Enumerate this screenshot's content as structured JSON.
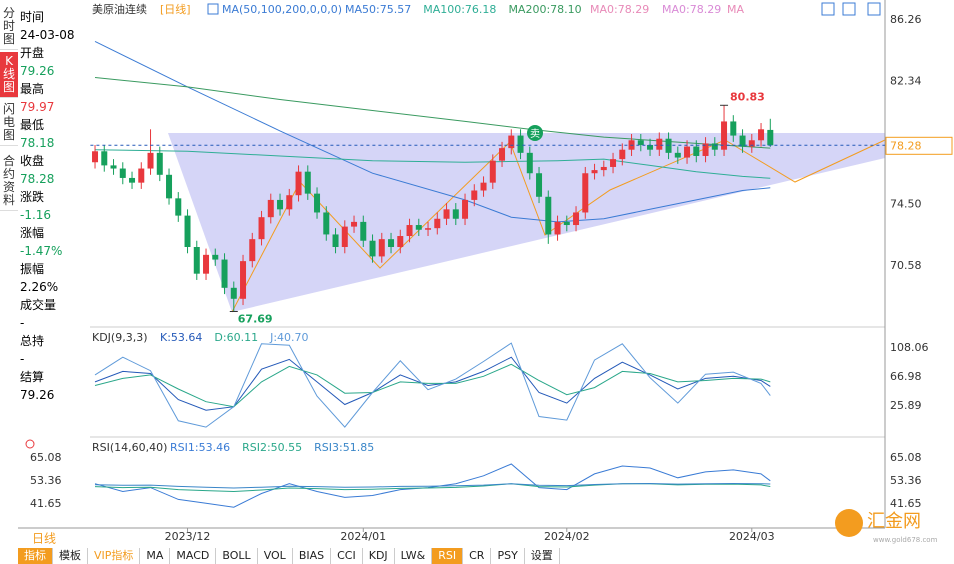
{
  "header": {
    "symbol": "美原油连续",
    "period": "[日线]",
    "ma_params": "MA(50,100,200,0,0,0)",
    "extras": [
      "MA0:78.29",
      "MA0:78.29",
      "MA"
    ]
  },
  "sidebar": {
    "tabs": [
      "分时图",
      "K线图",
      "闪电图",
      "合约资料"
    ],
    "labels": [
      "时间",
      "开盘",
      "最高",
      "最低",
      "收盘",
      "涨跌",
      "涨幅",
      "振幅",
      "成交量",
      "总持",
      "结算"
    ],
    "time": "24-03-08",
    "change": -1.16,
    "change_pct": "-1.47%",
    "amplitude": "2.26%",
    "volume": "-",
    "open_interest": "-",
    "settlement": 79.26
  },
  "period_tab": "日线",
  "tabs": [
    "指标",
    "模板",
    "VIP指标",
    "MA",
    "MACD",
    "BOLL",
    "VOL",
    "BIAS",
    "CCI",
    "KDJ",
    "LW&",
    "RSI",
    "CR",
    "PSY",
    "设置"
  ],
  "watermark": {
    "name": "汇金网",
    "url": "www.gold678.com"
  },
  "chart_data": [
    {
      "type": "candlestick",
      "signal": "卖",
      "up_color": "#e8383d",
      "down_color": "#16a05c",
      "open": [
        77.2,
        77.9,
        77.0,
        76.8,
        76.2,
        75.9,
        76.8,
        77.8,
        76.4,
        74.9,
        73.8,
        71.8,
        70.1,
        71.3,
        71.0,
        69.2,
        68.5,
        70.9,
        72.3,
        73.7,
        74.8,
        74.2,
        75.1,
        76.6,
        75.2,
        74.0,
        72.6,
        71.8,
        73.1,
        73.4,
        72.2,
        71.2,
        72.3,
        71.8,
        72.5,
        73.2,
        72.9,
        73.0,
        73.6,
        74.2,
        73.6,
        74.8,
        75.4,
        75.9,
        77.3,
        78.1,
        78.9,
        77.8,
        76.5,
        75.0,
        72.6,
        73.4,
        73.2,
        74.0,
        76.5,
        76.7,
        76.9,
        77.4,
        78.0,
        78.6,
        78.3,
        78.0,
        78.7,
        77.8,
        77.5,
        78.2,
        77.6,
        78.4,
        78.0,
        79.8,
        78.9,
        78.2,
        78.6,
        79.26
      ],
      "high": [
        78.3,
        78.3,
        77.4,
        77.2,
        76.6,
        77.2,
        79.3,
        78.2,
        76.8,
        75.3,
        74.2,
        72.2,
        71.7,
        71.7,
        71.4,
        69.6,
        71.3,
        72.7,
        74.1,
        75.2,
        75.2,
        75.5,
        77.0,
        77.0,
        75.6,
        74.4,
        73.0,
        73.5,
        73.8,
        73.8,
        72.6,
        72.7,
        72.7,
        72.9,
        73.6,
        73.6,
        73.4,
        74.0,
        74.6,
        74.6,
        75.2,
        75.8,
        76.3,
        77.7,
        78.5,
        79.3,
        79.3,
        78.2,
        76.9,
        75.4,
        73.8,
        73.8,
        74.4,
        76.9,
        77.1,
        77.3,
        77.8,
        78.4,
        79.0,
        79.0,
        78.7,
        79.1,
        79.1,
        78.2,
        78.6,
        78.6,
        78.8,
        78.8,
        80.83,
        80.2,
        79.3,
        79.0,
        79.7,
        79.97
      ],
      "low": [
        76.8,
        76.6,
        76.4,
        75.8,
        75.5,
        75.5,
        76.4,
        76.0,
        74.5,
        73.4,
        71.4,
        69.7,
        69.7,
        70.6,
        68.8,
        67.69,
        68.1,
        70.5,
        71.9,
        73.3,
        73.8,
        73.8,
        74.7,
        74.8,
        73.6,
        72.2,
        71.4,
        71.4,
        72.7,
        71.8,
        70.8,
        70.8,
        71.4,
        71.4,
        72.1,
        72.5,
        72.5,
        72.6,
        73.2,
        73.2,
        73.2,
        74.4,
        75.0,
        75.5,
        76.9,
        77.7,
        77.4,
        76.1,
        74.6,
        72.0,
        72.2,
        72.8,
        72.8,
        73.6,
        76.1,
        76.3,
        76.5,
        77.0,
        77.6,
        77.9,
        77.6,
        77.6,
        77.4,
        77.1,
        77.1,
        77.2,
        77.2,
        77.6,
        77.6,
        78.5,
        77.8,
        77.8,
        78.2,
        78.18
      ],
      "close": [
        77.9,
        77.0,
        76.8,
        76.2,
        75.9,
        76.8,
        77.8,
        76.4,
        74.9,
        73.8,
        71.8,
        70.1,
        71.3,
        71.0,
        69.2,
        68.5,
        70.9,
        72.3,
        73.7,
        74.8,
        74.2,
        75.1,
        76.6,
        75.2,
        74.0,
        72.6,
        71.8,
        73.1,
        73.4,
        72.2,
        71.2,
        72.3,
        71.8,
        72.5,
        73.2,
        72.9,
        73.0,
        73.6,
        74.2,
        73.6,
        74.8,
        75.4,
        75.9,
        77.3,
        78.1,
        78.9,
        77.8,
        76.5,
        75.0,
        72.6,
        73.4,
        73.2,
        74.0,
        76.5,
        76.7,
        76.9,
        77.4,
        78.0,
        78.6,
        78.3,
        78.0,
        78.7,
        77.8,
        77.5,
        78.2,
        77.6,
        78.4,
        78.0,
        79.8,
        78.9,
        78.2,
        78.6,
        79.3,
        78.28
      ],
      "lines": [
        {
          "name": "MA50:75.57",
          "color": "#3b7bd4",
          "x": [
            0,
            10,
            20,
            30,
            40,
            45,
            50,
            55,
            60,
            65,
            70,
            73
          ],
          "values": [
            84.9,
            82.0,
            79.2,
            76.5,
            74.8,
            73.7,
            73.4,
            73.6,
            74.2,
            74.8,
            75.4,
            75.57
          ]
        },
        {
          "name": "MA100:76.18",
          "color": "#2fae96",
          "x": [
            0,
            10,
            20,
            30,
            40,
            50,
            55,
            60,
            65,
            70,
            73
          ],
          "values": [
            78.0,
            77.9,
            77.6,
            77.3,
            77.2,
            77.3,
            77.4,
            77.0,
            76.6,
            76.3,
            76.18
          ]
        },
        {
          "name": "MA200:78.10",
          "color": "#3a9a60",
          "x": [
            0,
            10,
            20,
            30,
            40,
            47,
            55,
            65,
            73
          ],
          "values": [
            82.6,
            82.0,
            81.2,
            80.5,
            79.8,
            79.3,
            78.8,
            78.4,
            78.1
          ]
        }
      ],
      "xlim": [
        -0.5,
        85.4
      ],
      "xticks": [
        {
          "value": 10,
          "label": "2023/12"
        },
        {
          "value": 29,
          "label": "2024/01"
        },
        {
          "value": 51,
          "label": "2024/02"
        },
        {
          "value": 71,
          "label": "2024/03"
        }
      ],
      "ylim": [
        66.83,
        87.22
      ],
      "yticks": [
        86.26,
        82.34,
        78.42,
        {
          "value": 74.5,
          "label": "74.50"
        },
        70.58
      ]
    },
    {
      "type": "line",
      "title": "KDJ(9,3,3)",
      "xlim": [
        -0.5,
        85.4
      ],
      "x": [
        0,
        3,
        6,
        9,
        12,
        15,
        18,
        21,
        24,
        27,
        30,
        33,
        36,
        39,
        42,
        45,
        48,
        51,
        54,
        57,
        60,
        63,
        66,
        69,
        72,
        73
      ],
      "series": [
        {
          "name": "K:53.64",
          "color": "#2459b8",
          "values": [
            60,
            75,
            72,
            35,
            20,
            25,
            78,
            92,
            60,
            28,
            45,
            70,
            55,
            60,
            75,
            95,
            45,
            30,
            65,
            88,
            70,
            50,
            65,
            68,
            62,
            53.64
          ]
        },
        {
          "name": "D:60.11",
          "color": "#2aa78a",
          "values": [
            55,
            65,
            70,
            50,
            32,
            25,
            60,
            82,
            70,
            44,
            45,
            60,
            58,
            58,
            68,
            85,
            62,
            42,
            52,
            75,
            72,
            60,
            62,
            65,
            64,
            60.11
          ]
        },
        {
          "name": "J:40.70",
          "color": "#5f9ad9",
          "values": [
            70,
            95,
            76,
            5,
            -4,
            25,
            114,
            112,
            40,
            -4,
            45,
            90,
            49,
            64,
            89,
            115,
            11,
            6,
            91,
            114,
            66,
            30,
            71,
            74,
            58,
            40.7
          ]
        }
      ],
      "ylim": [
        -10.9,
        126.5
      ],
      "yticks": [
        108.06,
        66.98,
        25.89
      ]
    },
    {
      "type": "line",
      "title": "RSI(14,60,40)",
      "xlim": [
        -0.5,
        85.4
      ],
      "x": [
        0,
        3,
        6,
        9,
        12,
        15,
        18,
        21,
        24,
        27,
        30,
        33,
        36,
        39,
        42,
        45,
        48,
        51,
        54,
        57,
        60,
        63,
        66,
        69,
        72,
        73
      ],
      "series": [
        {
          "name": "RSI1:53.46",
          "color": "#3a7bd5",
          "values": [
            52,
            48,
            50,
            44,
            42,
            40,
            47,
            52,
            48,
            45,
            46,
            49,
            50,
            52,
            56,
            62,
            50,
            49,
            57,
            61,
            60,
            55,
            58,
            59,
            57,
            53.46
          ]
        },
        {
          "name": "RSI2:50.55",
          "color": "#2aa78a",
          "values": [
            50.5,
            50,
            50.2,
            49,
            48.5,
            48,
            48.8,
            49.8,
            49.5,
            49,
            49.2,
            49.6,
            49.8,
            50.1,
            50.8,
            52,
            50.5,
            50.3,
            51.3,
            52,
            52,
            51.4,
            51.7,
            51.8,
            51.4,
            50.55
          ]
        },
        {
          "name": "RSI3:51.85",
          "color": "#3a86c8",
          "values": [
            51.5,
            51.2,
            51.3,
            50.6,
            50.2,
            49.8,
            50.2,
            50.7,
            50.5,
            50.2,
            50.3,
            50.6,
            50.7,
            50.9,
            51.3,
            52,
            51.2,
            51,
            51.6,
            52,
            52.1,
            51.8,
            52,
            52.1,
            52,
            51.85
          ]
        }
      ],
      "ylim": [
        29.43,
        72.72
      ],
      "yticks": [
        65.08,
        53.36,
        41.65
      ]
    }
  ]
}
